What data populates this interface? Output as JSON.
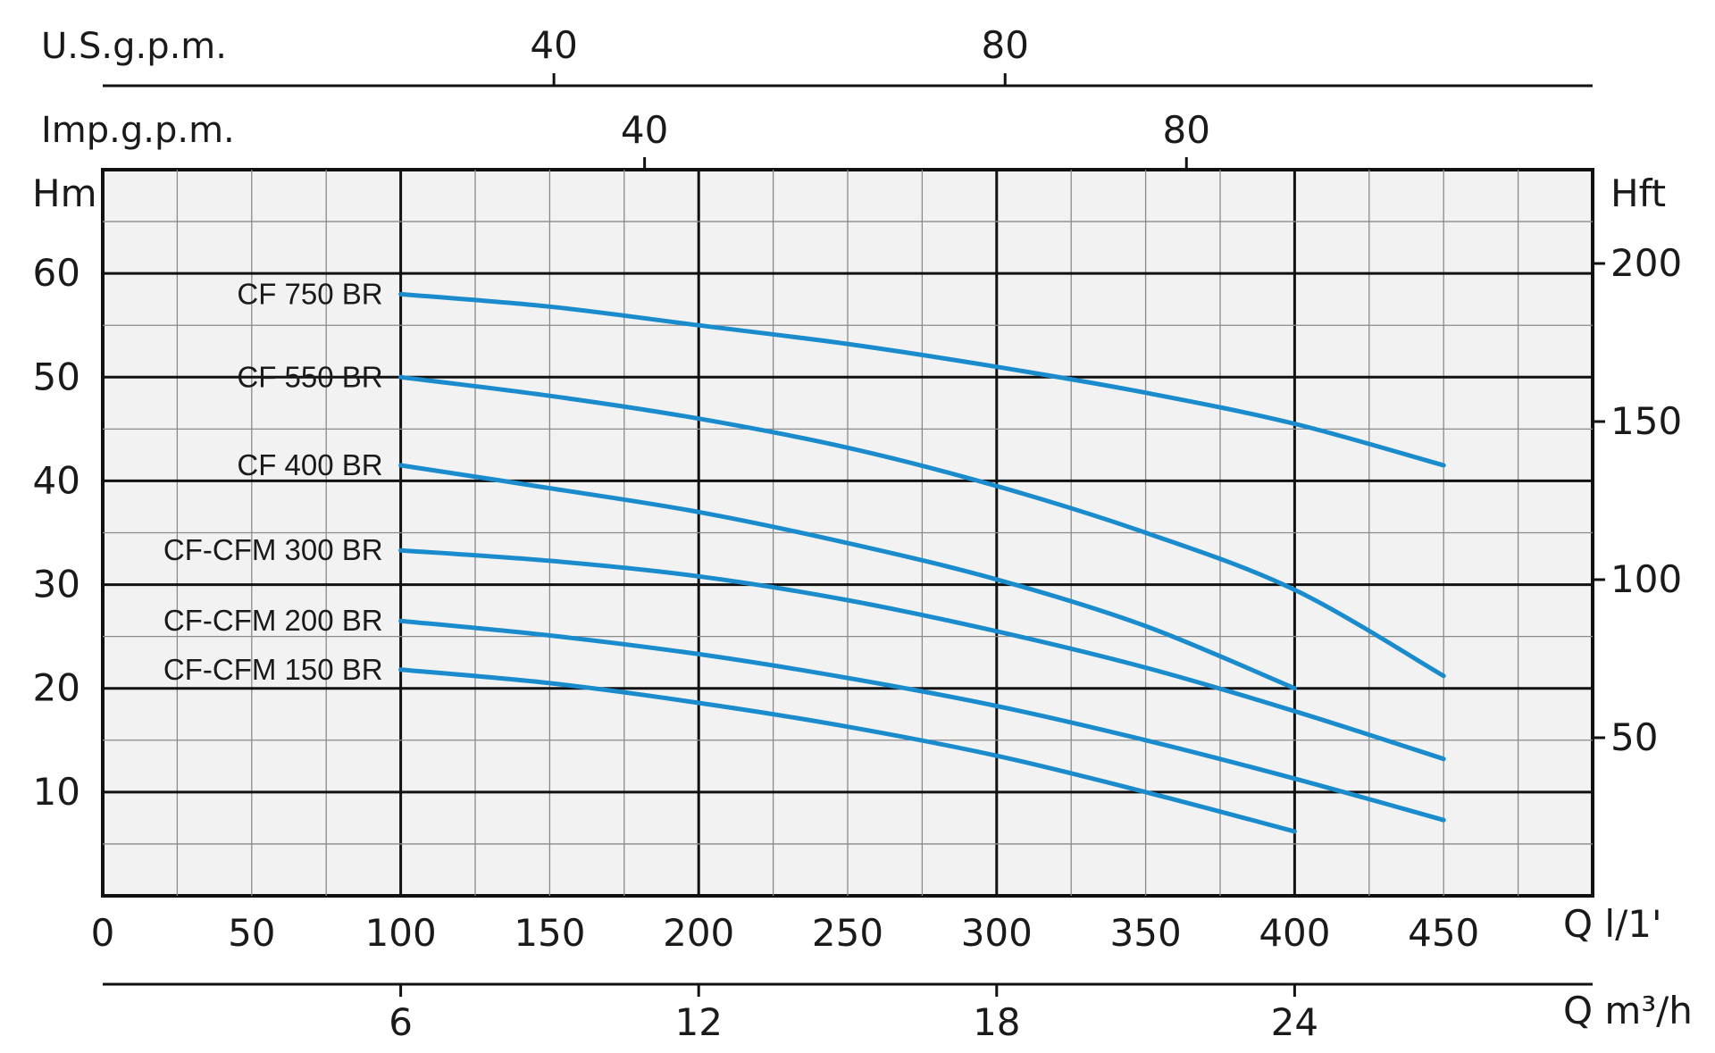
{
  "chart_data": {
    "type": "line",
    "curve_color": "#1a8ccd",
    "grid": true,
    "x": {
      "label": "Q l/1'",
      "lim": [
        0,
        500
      ],
      "ticks": [
        0,
        50,
        100,
        150,
        200,
        250,
        300,
        350,
        400,
        450
      ]
    },
    "y": {
      "label": "Hm",
      "lim": [
        0,
        70
      ],
      "ticks": [
        10,
        20,
        30,
        40,
        50,
        60
      ]
    },
    "secondary_axes": {
      "top_usgpm": {
        "label": "U.S.g.p.m.",
        "ticks": [
          40,
          80
        ]
      },
      "top_impgpm": {
        "label": "Imp.g.p.m.",
        "ticks": [
          40,
          80
        ]
      },
      "bottom_m3h": {
        "label": "Q m³/h",
        "ticks": [
          6,
          12,
          18,
          24
        ]
      },
      "right_ft": {
        "label": "Hft",
        "ticks": [
          50,
          100,
          150,
          200
        ]
      }
    },
    "series": [
      {
        "name": "CF 750 BR",
        "x": [
          100,
          150,
          200,
          250,
          300,
          350,
          400,
          450
        ],
        "y": [
          58,
          56.8,
          55,
          53.2,
          51,
          48.5,
          45.5,
          41.5
        ]
      },
      {
        "name": "CF 550 BR",
        "x": [
          100,
          150,
          200,
          250,
          300,
          350,
          400,
          450
        ],
        "y": [
          50,
          48.2,
          46,
          43.2,
          39.5,
          35,
          29.5,
          21.2
        ]
      },
      {
        "name": "CF 400 BR",
        "x": [
          100,
          150,
          200,
          250,
          300,
          350,
          400
        ],
        "y": [
          41.5,
          39.3,
          37,
          34,
          30.5,
          26,
          20
        ]
      },
      {
        "name": "CF-CFM 300 BR",
        "x": [
          100,
          150,
          200,
          250,
          300,
          350,
          400,
          450
        ],
        "y": [
          33.3,
          32.3,
          30.8,
          28.5,
          25.5,
          22,
          17.8,
          13.2
        ]
      },
      {
        "name": "CF-CFM 200 BR",
        "x": [
          100,
          150,
          200,
          250,
          300,
          350,
          400,
          450
        ],
        "y": [
          26.5,
          25.1,
          23.3,
          21,
          18.3,
          15,
          11.3,
          7.3
        ]
      },
      {
        "name": "CF-CFM 150 BR",
        "x": [
          100,
          150,
          200,
          250,
          300,
          350,
          400
        ],
        "y": [
          21.8,
          20.5,
          18.6,
          16.3,
          13.5,
          10,
          6.2
        ]
      }
    ]
  }
}
